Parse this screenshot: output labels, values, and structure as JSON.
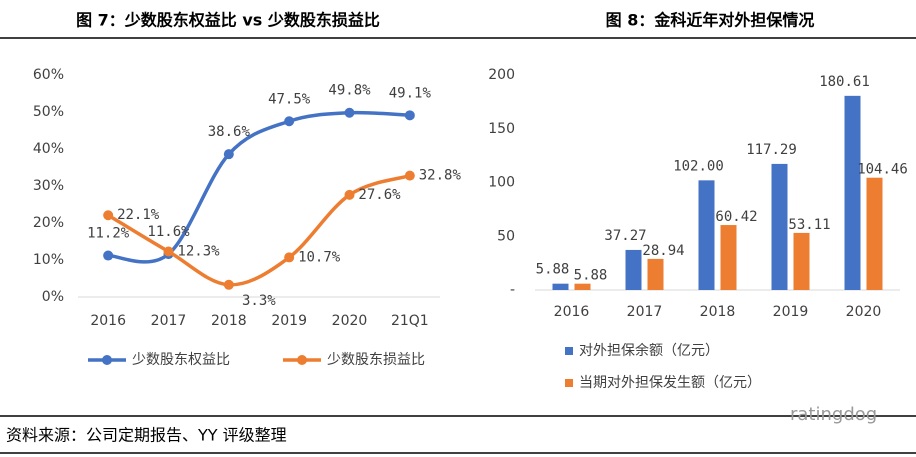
{
  "chart_data": [
    {
      "type": "line",
      "title": "图 7：少数股东权益比 vs 少数股东损益比",
      "categories": [
        "2016",
        "2017",
        "2018",
        "2019",
        "2020",
        "21Q1"
      ],
      "series": [
        {
          "name": "少数股东权益比",
          "color": "#4472c4",
          "values": [
            11.2,
            11.6,
            38.6,
            47.5,
            49.8,
            49.1
          ],
          "value_labels": [
            "11.2%",
            "11.6%",
            "38.6%",
            "47.5%",
            "49.8%",
            "49.1%"
          ]
        },
        {
          "name": "少数股东损益比",
          "color": "#ed7d31",
          "values": [
            22.1,
            12.3,
            3.3,
            10.7,
            27.6,
            32.8
          ],
          "value_labels": [
            "22.1%",
            "12.3%",
            "3.3%",
            "10.7%",
            "27.6%",
            "32.8%"
          ]
        }
      ],
      "ylim": [
        0,
        60
      ],
      "yticks": [
        {
          "value": 0,
          "label": "0%"
        },
        {
          "value": 10,
          "label": "10%"
        },
        {
          "value": 20,
          "label": "20%"
        },
        {
          "value": 30,
          "label": "30%"
        },
        {
          "value": 40,
          "label": "40%"
        },
        {
          "value": 50,
          "label": "50%"
        },
        {
          "value": 60,
          "label": "60%"
        }
      ],
      "smooth": true,
      "legend": "bottom"
    },
    {
      "type": "bar",
      "title": "图 8：金科近年对外担保情况",
      "categories": [
        "2016",
        "2017",
        "2018",
        "2019",
        "2020"
      ],
      "series": [
        {
          "name": "对外担保余额（亿元）",
          "color": "#4472c4",
          "values": [
            5.88,
            37.27,
            102.0,
            117.29,
            180.61
          ],
          "value_labels": [
            "5.88",
            "37.27",
            "102.00",
            "117.29",
            "180.61"
          ]
        },
        {
          "name": "当期对外担保发生额（亿元）",
          "color": "#ed7d31",
          "values": [
            5.88,
            28.94,
            60.42,
            53.11,
            104.46
          ],
          "value_labels": [
            "5.88",
            "28.94",
            "60.42",
            "53.11",
            "104.46"
          ]
        }
      ],
      "ylim": [
        0,
        200
      ],
      "yticks": [
        {
          "value": 0,
          "label": "-"
        },
        50,
        100,
        150,
        200
      ],
      "legend": "bottom-left"
    }
  ],
  "source": "资料来源：公司定期报告、YY 评级整理",
  "watermark": "ratingdog"
}
